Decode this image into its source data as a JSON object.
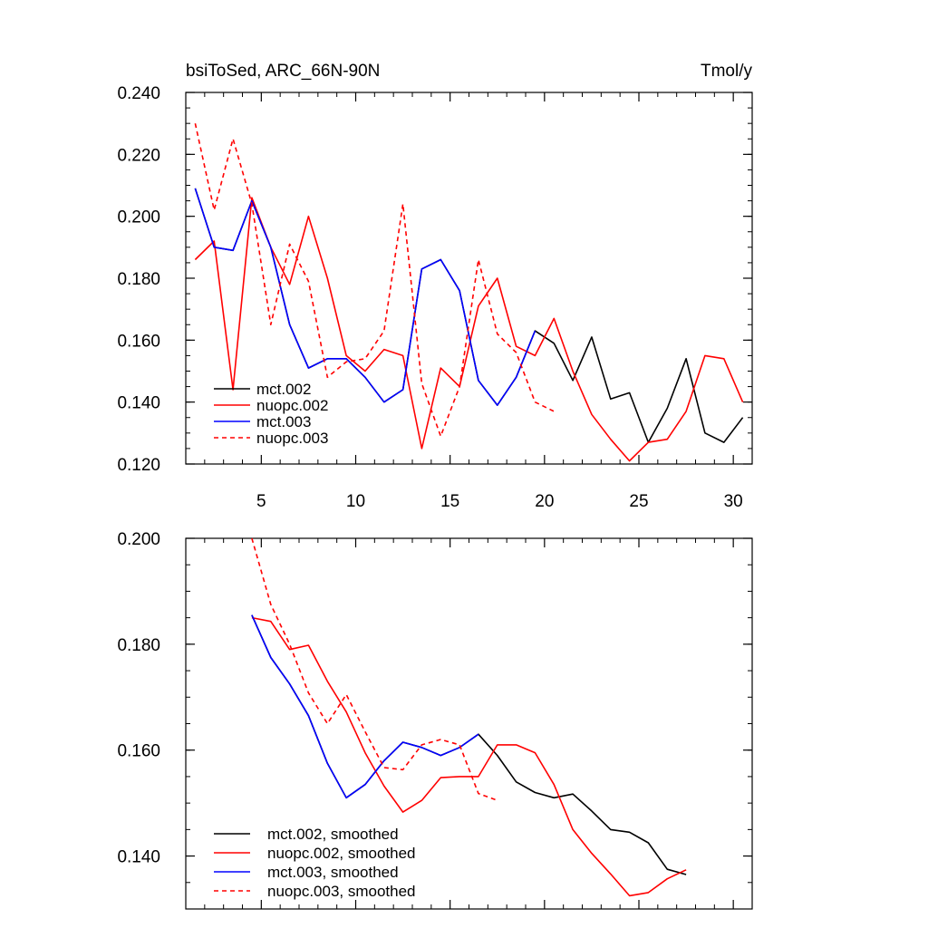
{
  "chart_data": [
    {
      "type": "line",
      "title": "bsiToSed, ARC_66N-90N",
      "units": "Tmol/y",
      "xlim": [
        1,
        31
      ],
      "ylim": [
        0.12,
        0.24
      ],
      "xticks": [
        5,
        10,
        15,
        20,
        25,
        30
      ],
      "xtick_labels": [
        "5",
        "10",
        "15",
        "20",
        "25",
        "30"
      ],
      "yticks": [
        0.12,
        0.14,
        0.16,
        0.18,
        0.2,
        0.22,
        0.24
      ],
      "ytick_labels": [
        "0.120",
        "0.140",
        "0.160",
        "0.180",
        "0.200",
        "0.220",
        "0.240"
      ],
      "legend_position": "bottom-left",
      "series": [
        {
          "name": "mct.002",
          "color": "#000000",
          "dash": "solid",
          "x": [
            1.5,
            2.5,
            3.5,
            4.5,
            5.5,
            6.5,
            7.5,
            8.5,
            9.5,
            10.5,
            11.5,
            12.5,
            13.5,
            14.5,
            15.5,
            16.5,
            17.5,
            18.5,
            19.5,
            20.5,
            21.5,
            22.5,
            23.5,
            24.5,
            25.5,
            26.5,
            27.5,
            28.5,
            29.5,
            30.5
          ],
          "values": [
            0.209,
            0.19,
            0.189,
            0.205,
            0.19,
            0.165,
            0.151,
            0.154,
            0.154,
            0.148,
            0.14,
            0.144,
            0.183,
            0.186,
            0.176,
            0.147,
            0.139,
            0.148,
            0.163,
            0.159,
            0.147,
            0.161,
            0.141,
            0.143,
            0.127,
            0.138,
            0.154,
            0.13,
            0.127,
            0.135
          ]
        },
        {
          "name": "nuopc.002",
          "color": "#ff0000",
          "dash": "solid",
          "x": [
            1.5,
            2.5,
            3.5,
            4.5,
            5.5,
            6.5,
            7.5,
            8.5,
            9.5,
            10.5,
            11.5,
            12.5,
            13.5,
            14.5,
            15.5,
            16.5,
            17.5,
            18.5,
            19.5,
            20.5,
            21.5,
            22.5,
            23.5,
            24.5,
            25.5,
            26.5,
            27.5,
            28.5,
            29.5,
            30.5
          ],
          "values": [
            0.186,
            0.192,
            0.144,
            0.206,
            0.19,
            0.178,
            0.2,
            0.18,
            0.155,
            0.15,
            0.157,
            0.155,
            0.125,
            0.151,
            0.145,
            0.171,
            0.18,
            0.158,
            0.155,
            0.167,
            0.15,
            0.136,
            0.128,
            0.121,
            0.127,
            0.128,
            0.137,
            0.155,
            0.154,
            0.14
          ]
        },
        {
          "name": "mct.003",
          "color": "#0000ff",
          "dash": "solid",
          "x": [
            1.5,
            2.5,
            3.5,
            4.5,
            5.5,
            6.5,
            7.5,
            8.5,
            9.5,
            10.5,
            11.5,
            12.5,
            13.5,
            14.5,
            15.5,
            16.5,
            17.5,
            18.5,
            19.5
          ],
          "values": [
            0.209,
            0.19,
            0.189,
            0.205,
            0.19,
            0.165,
            0.151,
            0.154,
            0.154,
            0.148,
            0.14,
            0.144,
            0.183,
            0.186,
            0.176,
            0.147,
            0.139,
            0.148,
            0.163
          ]
        },
        {
          "name": "nuopc.003",
          "color": "#ff0000",
          "dash": "dashed",
          "x": [
            1.5,
            2.5,
            3.5,
            4.5,
            5.5,
            6.5,
            7.5,
            8.5,
            9.5,
            10.5,
            11.5,
            12.5,
            13.5,
            14.5,
            15.5,
            16.5,
            17.5,
            18.5,
            19.5,
            20.5
          ],
          "values": [
            0.23,
            0.202,
            0.225,
            0.204,
            0.165,
            0.191,
            0.179,
            0.148,
            0.153,
            0.154,
            0.163,
            0.204,
            0.146,
            0.129,
            0.145,
            0.186,
            0.162,
            0.156,
            0.14,
            0.137
          ]
        }
      ]
    },
    {
      "type": "line",
      "title": "",
      "xlim": [
        1,
        31
      ],
      "ylim": [
        0.13,
        0.2
      ],
      "xticks": [
        5,
        10,
        15,
        20,
        25,
        30
      ],
      "xtick_labels": [
        "",
        "",
        "",
        "",
        "",
        ""
      ],
      "yticks": [
        0.14,
        0.16,
        0.18,
        0.2
      ],
      "ytick_labels": [
        "0.140",
        "0.160",
        "0.180",
        "0.200"
      ],
      "legend_position": "bottom-left",
      "series": [
        {
          "name": "mct.002, smoothed",
          "color": "#000000",
          "dash": "solid",
          "x": [
            4.5,
            5.5,
            6.5,
            7.5,
            8.5,
            9.5,
            10.5,
            11.5,
            12.5,
            13.5,
            14.5,
            15.5,
            16.5,
            17.5,
            18.5,
            19.5,
            20.5,
            21.5,
            22.5,
            23.5,
            24.5,
            25.5,
            26.5,
            27.5
          ],
          "values": [
            0.1855,
            0.1775,
            0.1725,
            0.1665,
            0.1575,
            0.151,
            0.1535,
            0.158,
            0.1615,
            0.1605,
            0.159,
            0.1605,
            0.163,
            0.159,
            0.154,
            0.152,
            0.151,
            0.1517,
            0.1485,
            0.145,
            0.1445,
            0.1425,
            0.1375,
            0.1365
          ]
        },
        {
          "name": "nuopc.002, smoothed",
          "color": "#ff0000",
          "dash": "solid",
          "x": [
            4.5,
            5.5,
            6.5,
            7.5,
            8.5,
            9.5,
            10.5,
            11.5,
            12.5,
            13.5,
            14.5,
            15.5,
            16.5,
            17.5,
            18.5,
            19.5,
            20.5,
            21.5,
            22.5,
            23.5,
            24.5,
            25.5,
            26.5,
            27.5
          ],
          "values": [
            0.185,
            0.1843,
            0.179,
            0.1798,
            0.173,
            0.1672,
            0.1595,
            0.1532,
            0.1483,
            0.1505,
            0.1548,
            0.155,
            0.155,
            0.161,
            0.161,
            0.1595,
            0.1535,
            0.145,
            0.1405,
            0.1366,
            0.1325,
            0.1331,
            0.1357,
            0.1374
          ]
        },
        {
          "name": "mct.003, smoothed",
          "color": "#0000ff",
          "dash": "solid",
          "x": [
            4.5,
            5.5,
            6.5,
            7.5,
            8.5,
            9.5,
            10.5,
            11.5,
            12.5,
            13.5,
            14.5,
            15.5,
            16.5
          ],
          "values": [
            0.1855,
            0.1775,
            0.1725,
            0.1665,
            0.1575,
            0.151,
            0.1535,
            0.158,
            0.1615,
            0.1605,
            0.159,
            0.1605,
            0.163
          ]
        },
        {
          "name": "nuopc.003, smoothed",
          "color": "#ff0000",
          "dash": "dashed",
          "x": [
            4.5,
            5.5,
            6.5,
            7.5,
            8.5,
            9.5,
            10.5,
            11.5,
            12.5,
            13.5,
            14.5,
            15.5,
            16.5,
            17.5
          ],
          "values": [
            0.2,
            0.1875,
            0.18,
            0.1708,
            0.165,
            0.1705,
            0.1635,
            0.1567,
            0.1563,
            0.161,
            0.162,
            0.161,
            0.1518,
            0.1505
          ]
        }
      ]
    }
  ]
}
